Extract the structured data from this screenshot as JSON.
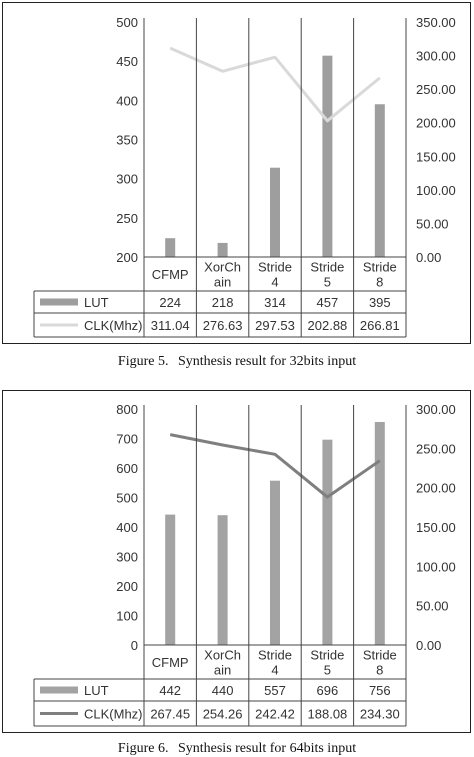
{
  "chart_data": [
    {
      "type": "bar+line",
      "categories": [
        "CFMP",
        "XorChain",
        "Stride 4",
        "Stride 5",
        "Stride 8"
      ],
      "category_label_lines": [
        [
          "CFMP"
        ],
        [
          "XorCh",
          "ain"
        ],
        [
          "Stride",
          "4"
        ],
        [
          "Stride",
          "5"
        ],
        [
          "Stride",
          "8"
        ]
      ],
      "series": [
        {
          "name": "LUT",
          "type": "bar",
          "axis": "left",
          "color": "#9e9e9e",
          "values": [
            224,
            218,
            314,
            457,
            395
          ],
          "labels": [
            "224",
            "218",
            "314",
            "457",
            "395"
          ]
        },
        {
          "name": "CLK(Mhz)",
          "type": "line",
          "axis": "right",
          "color": "#d9d9d9",
          "values": [
            311.04,
            276.63,
            297.53,
            202.88,
            266.81
          ],
          "labels": [
            "311.04",
            "276.63",
            "297.53",
            "202.88",
            "266.81"
          ]
        }
      ],
      "left_axis": {
        "min": 200,
        "max": 500,
        "ticks": [
          "200",
          "250",
          "300",
          "350",
          "400",
          "450",
          "500"
        ]
      },
      "right_axis": {
        "min": 0,
        "max": 350,
        "ticks": [
          "0.00",
          "50.00",
          "100.00",
          "150.00",
          "200.00",
          "250.00",
          "300.00",
          "350.00"
        ]
      },
      "legend": "data-table"
    },
    {
      "type": "bar+line",
      "categories": [
        "CFMP",
        "XorChain",
        "Stride 4",
        "Stride 5",
        "Stride 8"
      ],
      "category_label_lines": [
        [
          "CFMP"
        ],
        [
          "XorCh",
          "ain"
        ],
        [
          "Stride",
          "4"
        ],
        [
          "Stride",
          "5"
        ],
        [
          "Stride",
          "8"
        ]
      ],
      "series": [
        {
          "name": "LUT",
          "type": "bar",
          "axis": "left",
          "color": "#a3a3a3",
          "values": [
            442,
            440,
            557,
            696,
            756
          ],
          "labels": [
            "442",
            "440",
            "557",
            "696",
            "756"
          ]
        },
        {
          "name": "CLK(Mhz)",
          "type": "line",
          "axis": "right",
          "color": "#7f7f7f",
          "values": [
            267.45,
            254.26,
            242.42,
            188.08,
            234.3
          ],
          "labels": [
            "267.45",
            "254.26",
            "242.42",
            "188.08",
            "234.30"
          ]
        }
      ],
      "left_axis": {
        "min": 0,
        "max": 800,
        "ticks": [
          "0",
          "100",
          "200",
          "300",
          "400",
          "500",
          "600",
          "700",
          "800"
        ]
      },
      "right_axis": {
        "min": 0,
        "max": 300,
        "ticks": [
          "0.00",
          "50.00",
          "100.00",
          "150.00",
          "200.00",
          "250.00",
          "300.00"
        ]
      },
      "legend": "data-table"
    }
  ],
  "captions": [
    {
      "label": "Figure 5.",
      "text": "Synthesis result for 32bits input"
    },
    {
      "label": "Figure 6.",
      "text": "Synthesis result for 64bits input"
    }
  ]
}
